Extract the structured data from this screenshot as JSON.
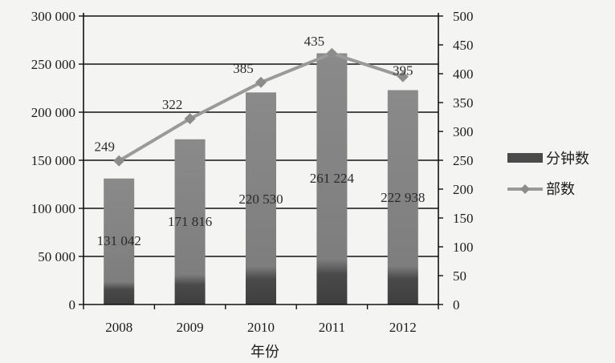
{
  "chart_data": {
    "type": "bar+line",
    "categories": [
      "2008",
      "2009",
      "2010",
      "2011",
      "2012"
    ],
    "series": [
      {
        "name": "分钟数",
        "type": "bar",
        "axis": "left",
        "values": [
          131042,
          171816,
          220530,
          261224,
          222938
        ],
        "labels": [
          "131 042",
          "171 816",
          "220 530",
          "261 224",
          "222 938"
        ]
      },
      {
        "name": "部数",
        "type": "line",
        "axis": "right",
        "values": [
          249,
          322,
          385,
          435,
          395
        ],
        "labels": [
          "249",
          "322",
          "385",
          "435",
          "395"
        ]
      }
    ],
    "xlabel": "年份",
    "y_left": {
      "ylim": [
        0,
        300000
      ],
      "ticks": [
        0,
        50000,
        100000,
        150000,
        200000,
        250000,
        300000
      ],
      "tick_labels": [
        "0",
        "50 000",
        "100 000",
        "150 000",
        "200 000",
        "250 000",
        "300 000"
      ]
    },
    "y_right": {
      "ylim": [
        0,
        500
      ],
      "ticks": [
        0,
        50,
        100,
        150,
        200,
        250,
        300,
        350,
        400,
        450,
        500
      ],
      "tick_labels": [
        "0",
        "50",
        "100",
        "150",
        "200",
        "250",
        "300",
        "350",
        "400",
        "450",
        "500"
      ]
    },
    "grid": "horizontal",
    "legend": "right",
    "colors": {
      "bar": "#8a8a8a",
      "bar_dark": "#4a4a4a",
      "line": "#9a9a9a",
      "marker": "#8c8c8c",
      "grid": "#111111"
    }
  }
}
